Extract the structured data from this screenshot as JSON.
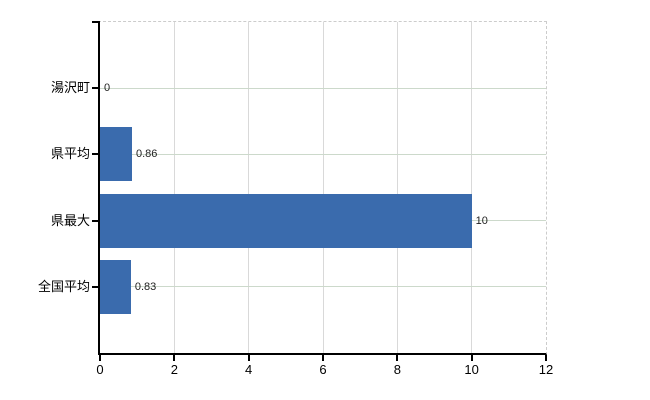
{
  "chart_data": {
    "type": "bar",
    "orientation": "horizontal",
    "title": "",
    "xlabel": "",
    "ylabel": "",
    "categories": [
      "湯沢町",
      "県平均",
      "県最大",
      "全国平均"
    ],
    "values": [
      0,
      0.86,
      10,
      0.83
    ],
    "value_labels": [
      "0",
      "0.86",
      "10",
      "0.83"
    ],
    "xlim": [
      0,
      12
    ],
    "xticks": [
      0,
      2,
      4,
      6,
      8,
      10,
      12
    ],
    "grid": true,
    "legend": false,
    "colors": {
      "bar": "#3a6bad",
      "row_gridline": "#ccd9cb",
      "tick_gridline": "#d9d9d9",
      "dashed_border": "#cccccc",
      "axis": "#000000",
      "text": "#000000",
      "value_text": "#1f1f1f"
    }
  }
}
